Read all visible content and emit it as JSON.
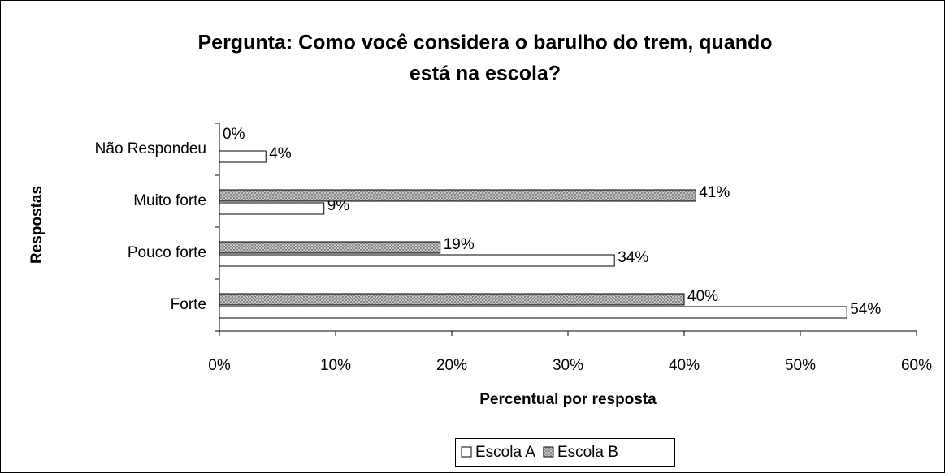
{
  "chart_data": {
    "type": "hbar",
    "title": [
      "Pergunta: Como você considera o barulho do trem, quando",
      "está na escola?"
    ],
    "xlabel": "Percentual por resposta",
    "ylabel": "Respostas",
    "categories": [
      "Não Respondeu",
      "Muito forte",
      "Pouco forte",
      "Forte"
    ],
    "series": [
      {
        "name": "Escola A",
        "color": "#ffffff",
        "values": [
          4,
          9,
          34,
          54
        ],
        "value_labels": [
          "4%",
          "9%",
          "34%",
          "54%"
        ]
      },
      {
        "name": "Escola B",
        "color": "#808080",
        "pattern": "crosshatch",
        "values": [
          0,
          41,
          19,
          40
        ],
        "value_labels": [
          "0%",
          "41%",
          "19%",
          "40%"
        ]
      }
    ],
    "xlim": [
      0,
      60
    ],
    "xticks": [
      {
        "value": 0,
        "label": "0%"
      },
      {
        "value": 10,
        "label": "10%"
      },
      {
        "value": 20,
        "label": "20%"
      },
      {
        "value": 30,
        "label": "30%"
      },
      {
        "value": 40,
        "label": "40%"
      },
      {
        "value": 50,
        "label": "50%"
      },
      {
        "value": 60,
        "label": "60%"
      }
    ],
    "legend": "bottom"
  }
}
